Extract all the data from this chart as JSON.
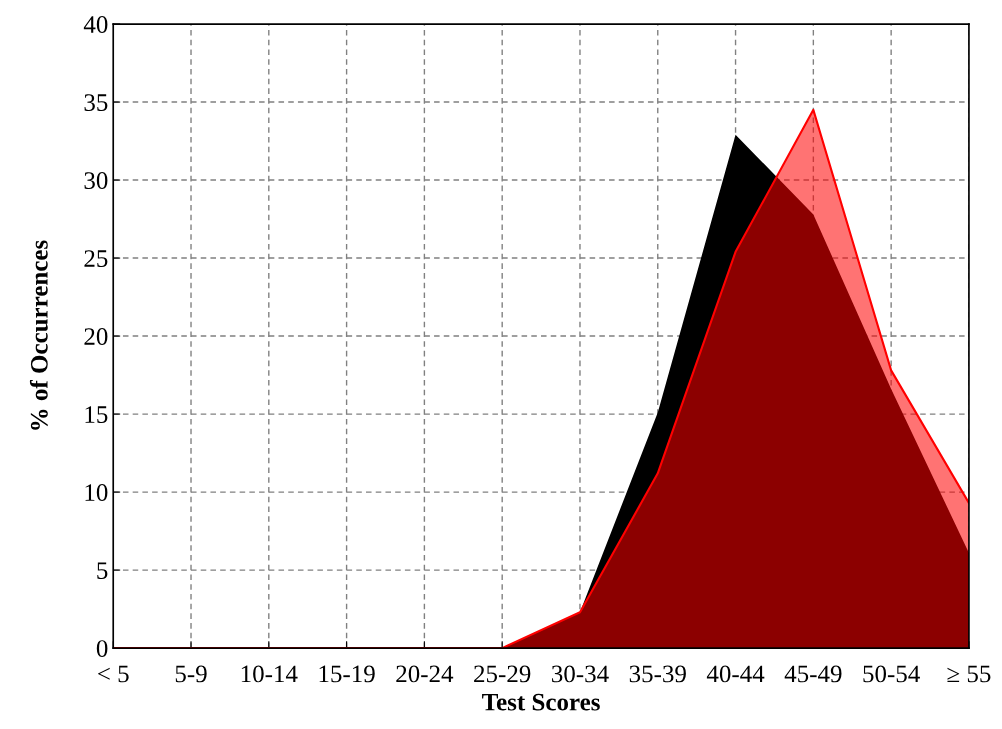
{
  "chart_data": {
    "type": "area",
    "xlabel": "Test Scores",
    "ylabel": "% of Occurrences",
    "categories": [
      "< 5",
      "5-9",
      "10-14",
      "15-19",
      "20-24",
      "25-29",
      "30-34",
      "35-39",
      "40-44",
      "45-49",
      "50-54",
      "≥ 55"
    ],
    "series": [
      {
        "color": "#000000",
        "values": [
          0,
          0,
          0,
          0,
          0,
          0,
          2.3,
          15.1,
          32.9,
          27.8,
          16.6,
          6.1
        ]
      },
      {
        "color": "#ff0000",
        "values": [
          0,
          0,
          0,
          0,
          0,
          0,
          2.3,
          11.2,
          25.4,
          34.5,
          17.8,
          9.3
        ]
      }
    ],
    "ylim": [
      0,
      40
    ],
    "yticks": [
      0,
      5,
      10,
      15,
      20,
      25,
      30,
      35,
      40
    ],
    "grid": true,
    "legend": false
  }
}
